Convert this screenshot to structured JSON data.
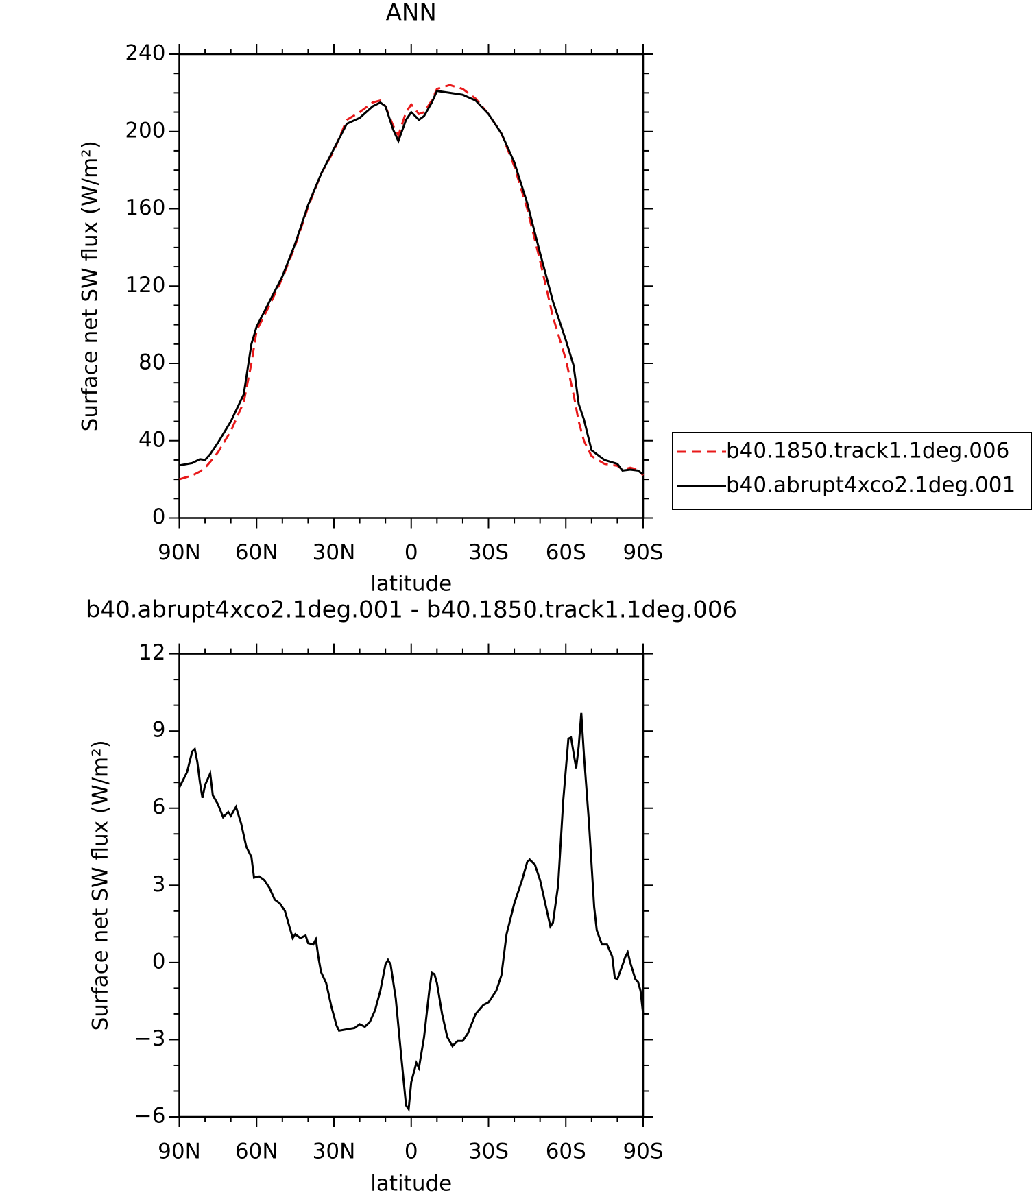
{
  "chart_data": [
    {
      "type": "line",
      "title": "ANN",
      "ylabel": "Surface net SW flux (W/m²)",
      "xlabel": "latitude",
      "xlim": [
        90,
        -90
      ],
      "xticks": [
        {
          "value": 90,
          "label": "90N"
        },
        {
          "value": 60,
          "label": "60N"
        },
        {
          "value": 30,
          "label": "30N"
        },
        0,
        {
          "value": -30,
          "label": "30S"
        },
        {
          "value": -60,
          "label": "60S"
        },
        {
          "value": -90,
          "label": "90S"
        }
      ],
      "xminorticks": [
        80,
        70,
        50,
        40,
        20,
        10,
        -10,
        -20,
        -40,
        -50,
        -70,
        -80
      ],
      "ylim": [
        0,
        240
      ],
      "yticks": [
        0,
        40,
        80,
        120,
        160,
        200,
        240
      ],
      "yminorticks": [
        10,
        20,
        30,
        50,
        60,
        70,
        90,
        100,
        110,
        130,
        140,
        150,
        170,
        180,
        190,
        210,
        220,
        230
      ],
      "legend": "right",
      "x": [
        90,
        85,
        82,
        80,
        78,
        75,
        70,
        65,
        62,
        60,
        55,
        50,
        45,
        40,
        35,
        30,
        25,
        20,
        15,
        12,
        10,
        7,
        5,
        2,
        0,
        -3,
        -5,
        -8,
        -10,
        -15,
        -20,
        -25,
        -30,
        -35,
        -40,
        -45,
        -50,
        -55,
        -60,
        -63,
        -65,
        -67,
        -70,
        -75,
        -80,
        -82,
        -85,
        -88,
        -90
      ],
      "series": [
        {
          "name": "b40.1850.track1.1deg.006",
          "color": "#e8191a",
          "dash": "dashed",
          "values": [
            20,
            22,
            24,
            26,
            29,
            34,
            45,
            60,
            80,
            97,
            110,
            124,
            141,
            161,
            178,
            190,
            206,
            210,
            215,
            216,
            213,
            203,
            198,
            210,
            214,
            209,
            210,
            216,
            222,
            224,
            222,
            217,
            209,
            199,
            182,
            160,
            133,
            104,
            82,
            64,
            50,
            40,
            32,
            28,
            27,
            25,
            26,
            25,
            22
          ]
        },
        {
          "name": "b40.abrupt4xco2.1deg.001",
          "color": "#000000",
          "dash": "solid",
          "values": [
            27.2,
            28.4,
            30.4,
            30,
            33,
            39,
            50,
            64,
            90,
            99,
            112,
            125,
            142,
            162,
            178,
            191,
            204,
            207,
            213,
            215,
            213,
            201,
            195,
            206,
            210,
            206,
            208,
            215,
            221,
            220,
            219,
            216,
            209,
            199,
            184,
            163,
            137,
            112,
            92,
            79,
            59,
            51,
            35,
            30,
            28,
            24.5,
            25,
            24.5,
            22.5
          ]
        }
      ]
    },
    {
      "type": "line",
      "title": "b40.abrupt4xco2.1deg.001 - b40.1850.track1.1deg.006",
      "ylabel": "Surface net SW flux (W/m²)",
      "xlabel": "latitude",
      "xlim": [
        90,
        -90
      ],
      "xticks": [
        {
          "value": 90,
          "label": "90N"
        },
        {
          "value": 60,
          "label": "60N"
        },
        {
          "value": 30,
          "label": "30N"
        },
        0,
        {
          "value": -30,
          "label": "30S"
        },
        {
          "value": -60,
          "label": "60S"
        },
        {
          "value": -90,
          "label": "90S"
        }
      ],
      "xminorticks": [
        80,
        70,
        50,
        40,
        20,
        10,
        -10,
        -20,
        -40,
        -50,
        -70,
        -80
      ],
      "ylim": [
        -6,
        12
      ],
      "yticks": [
        {
          "value": -6,
          "label": "−6"
        },
        {
          "value": -3,
          "label": "−3"
        },
        0,
        3,
        6,
        9,
        12
      ],
      "yminorticks": [
        -5,
        -4,
        -2,
        -1,
        1,
        2,
        4,
        5,
        7,
        8,
        10,
        11
      ],
      "x": [
        90,
        87,
        85,
        84,
        83,
        82,
        81,
        80,
        78,
        77,
        75,
        73,
        71,
        70,
        68,
        66,
        64,
        62,
        61,
        59,
        57,
        55,
        53,
        51,
        49,
        46,
        45,
        43,
        41,
        40,
        38,
        37,
        36,
        35,
        33,
        31,
        29,
        28,
        25,
        22,
        20,
        18,
        16,
        14,
        12,
        10,
        9,
        8,
        6,
        4,
        2,
        1,
        0,
        -2,
        -3,
        -5,
        -7,
        -8,
        -9,
        -10,
        -12,
        -14,
        -16,
        -18,
        -20,
        -22,
        -25,
        -28,
        -30,
        -33,
        -35,
        -37,
        -40,
        -43,
        -45,
        -46,
        -48,
        -50,
        -52,
        -54,
        -55,
        -57,
        -59,
        -61,
        -62,
        -64,
        -65,
        -66,
        -67,
        -69,
        -71,
        -72,
        -74,
        -76,
        -78,
        -79,
        -80,
        -82,
        -83,
        -84,
        -85,
        -87,
        -88,
        -89,
        -90
      ],
      "color": "#000000",
      "values": [
        6.8,
        7.4,
        8.2,
        8.3,
        7.8,
        7.0,
        6.4,
        6.9,
        7.35,
        6.5,
        6.15,
        5.65,
        5.85,
        5.7,
        6.05,
        5.4,
        4.5,
        4.1,
        3.3,
        3.35,
        3.2,
        2.9,
        2.45,
        2.3,
        2.0,
        0.95,
        1.1,
        0.95,
        1.05,
        0.75,
        0.7,
        0.9,
        0.2,
        -0.37,
        -0.8,
        -1.7,
        -2.45,
        -2.65,
        -2.6,
        -2.55,
        -2.4,
        -2.5,
        -2.3,
        -1.85,
        -1.1,
        -0.07,
        0.1,
        -0.07,
        -1.4,
        -3.5,
        -5.55,
        -5.7,
        -4.65,
        -3.9,
        -4.1,
        -2.9,
        -1.1,
        -0.4,
        -0.45,
        -0.8,
        -2.0,
        -2.9,
        -3.25,
        -3.05,
        -3.05,
        -2.75,
        -2.0,
        -1.65,
        -1.55,
        -1.1,
        -0.5,
        1.1,
        2.3,
        3.2,
        3.9,
        4.0,
        3.8,
        3.2,
        2.3,
        1.4,
        1.55,
        3.0,
        6.3,
        8.7,
        8.75,
        7.55,
        8.4,
        9.7,
        8.1,
        5.4,
        2.15,
        1.25,
        0.7,
        0.7,
        0.23,
        -0.6,
        -0.65,
        -0.1,
        0.2,
        0.4,
        0,
        -0.65,
        -0.75,
        -1.1,
        -2.0
      ]
    }
  ]
}
